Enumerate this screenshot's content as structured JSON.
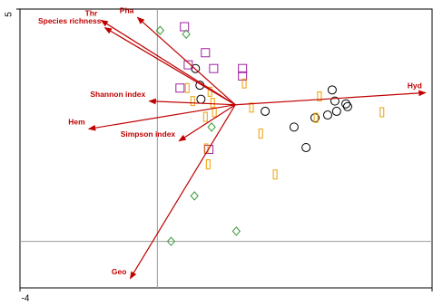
{
  "chart_data": {
    "type": "biplot",
    "xlim": [
      -4,
      8
    ],
    "ylim": [
      -1,
      5
    ],
    "xticks": [
      -4,
      8
    ],
    "yticks": [
      5
    ],
    "zero_lines": true,
    "arrow_color": "#c00000",
    "origin": [
      2.27,
      2.94
    ],
    "vectors": [
      {
        "label": "Thr",
        "x": -1.64,
        "y": 4.76
      },
      {
        "label": "Pha",
        "x": -0.58,
        "y": 4.82
      },
      {
        "label": "Species richness",
        "x": -1.53,
        "y": 4.6
      },
      {
        "label": "Shannon index",
        "x": -0.24,
        "y": 3.02
      },
      {
        "label": "Hem",
        "x": -2.0,
        "y": 2.42
      },
      {
        "label": "Simpson index",
        "x": 0.63,
        "y": 2.16
      },
      {
        "label": "Hyd",
        "x": 7.81,
        "y": 3.2
      },
      {
        "label": "Geo",
        "x": -0.79,
        "y": -0.8
      }
    ],
    "series": [
      {
        "marker": "circle",
        "color": "#000000",
        "x": [
          1.11,
          1.24,
          1.27,
          3.14,
          3.98,
          4.33,
          4.59,
          4.96,
          5.09,
          5.17,
          5.22,
          5.49,
          5.54
        ],
        "y": [
          3.72,
          3.36,
          3.06,
          2.8,
          2.46,
          2.02,
          2.66,
          2.72,
          3.26,
          3.02,
          2.8,
          2.96,
          2.9
        ]
      },
      {
        "marker": "square",
        "color": "#a020a0",
        "x": [
          0.79,
          1.4,
          1.64,
          0.9,
          2.48,
          2.48,
          0.66,
          1.5
        ],
        "y": [
          4.62,
          4.06,
          3.72,
          3.8,
          3.72,
          3.56,
          3.3,
          1.98
        ]
      },
      {
        "marker": "bar",
        "color": "#f0a000",
        "x": [
          0.87,
          1.53,
          1.61,
          1.4,
          1.66,
          2.53,
          2.74,
          3.01,
          3.43,
          4.72,
          4.62,
          6.54,
          1.48,
          1.42,
          1.03
        ],
        "y": [
          3.3,
          3.22,
          2.98,
          2.68,
          2.78,
          3.4,
          2.88,
          2.32,
          1.44,
          3.12,
          2.66,
          2.78,
          1.66,
          2.0,
          3.02
        ]
      },
      {
        "marker": "diamond",
        "color": "#3a9a3a",
        "x": [
          0.08,
          0.84,
          1.58,
          1.08,
          0.4,
          2.3
        ],
        "y": [
          4.54,
          4.46,
          2.46,
          0.98,
          0,
          0.22
        ]
      }
    ]
  }
}
